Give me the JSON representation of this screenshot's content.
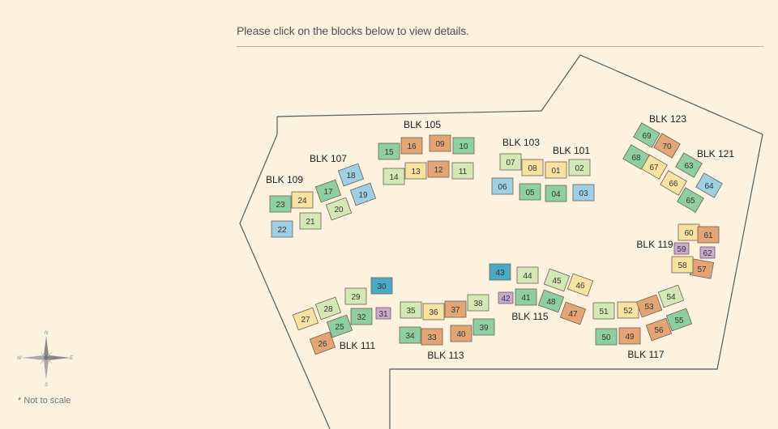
{
  "instruction": "Please click on the blocks below to view details.",
  "note": "* Not to scale",
  "compass": {
    "n": "N",
    "s": "S",
    "e": "E",
    "w": "W"
  },
  "colors": {
    "background": "#fdf1df",
    "outline": "#5a5a5a",
    "green": "#8fcf9f",
    "light_green": "#d4e8b5",
    "orange": "#e3a575",
    "yellow": "#f8e2a2",
    "blue": "#9ecfe2",
    "teal": "#4aa9c5",
    "purple": "#cbaad0"
  },
  "blocks": [
    {
      "label": "BLK 105",
      "units": [
        "09",
        "10",
        "11",
        "12",
        "13",
        "14",
        "15",
        "16"
      ]
    },
    {
      "label": "BLK 103",
      "units": [
        "05",
        "06",
        "07",
        "08"
      ]
    },
    {
      "label": "BLK 101",
      "units": [
        "01",
        "02",
        "03",
        "04"
      ]
    },
    {
      "label": "BLK 107",
      "units": [
        "17",
        "18",
        "19",
        "20"
      ]
    },
    {
      "label": "BLK 109",
      "units": [
        "21",
        "22",
        "23",
        "24"
      ]
    },
    {
      "label": "BLK 123",
      "units": [
        "67",
        "68",
        "69",
        "70"
      ]
    },
    {
      "label": "BLK 121",
      "units": [
        "63",
        "64",
        "65",
        "66"
      ]
    },
    {
      "label": "BLK 119",
      "units": [
        "57",
        "58",
        "59",
        "60",
        "61",
        "62"
      ]
    },
    {
      "label": "BLK 115",
      "units": [
        "41",
        "42",
        "43",
        "44",
        "45",
        "46",
        "47",
        "48"
      ]
    },
    {
      "label": "BLK 117",
      "units": [
        "49",
        "50",
        "51",
        "52",
        "53",
        "54",
        "55",
        "56"
      ]
    },
    {
      "label": "BLK 113",
      "units": [
        "33",
        "34",
        "35",
        "36",
        "37",
        "38",
        "39",
        "40"
      ]
    },
    {
      "label": "BLK 111",
      "units": [
        "25",
        "26",
        "27",
        "28",
        "29",
        "30",
        "31",
        "32"
      ]
    }
  ]
}
